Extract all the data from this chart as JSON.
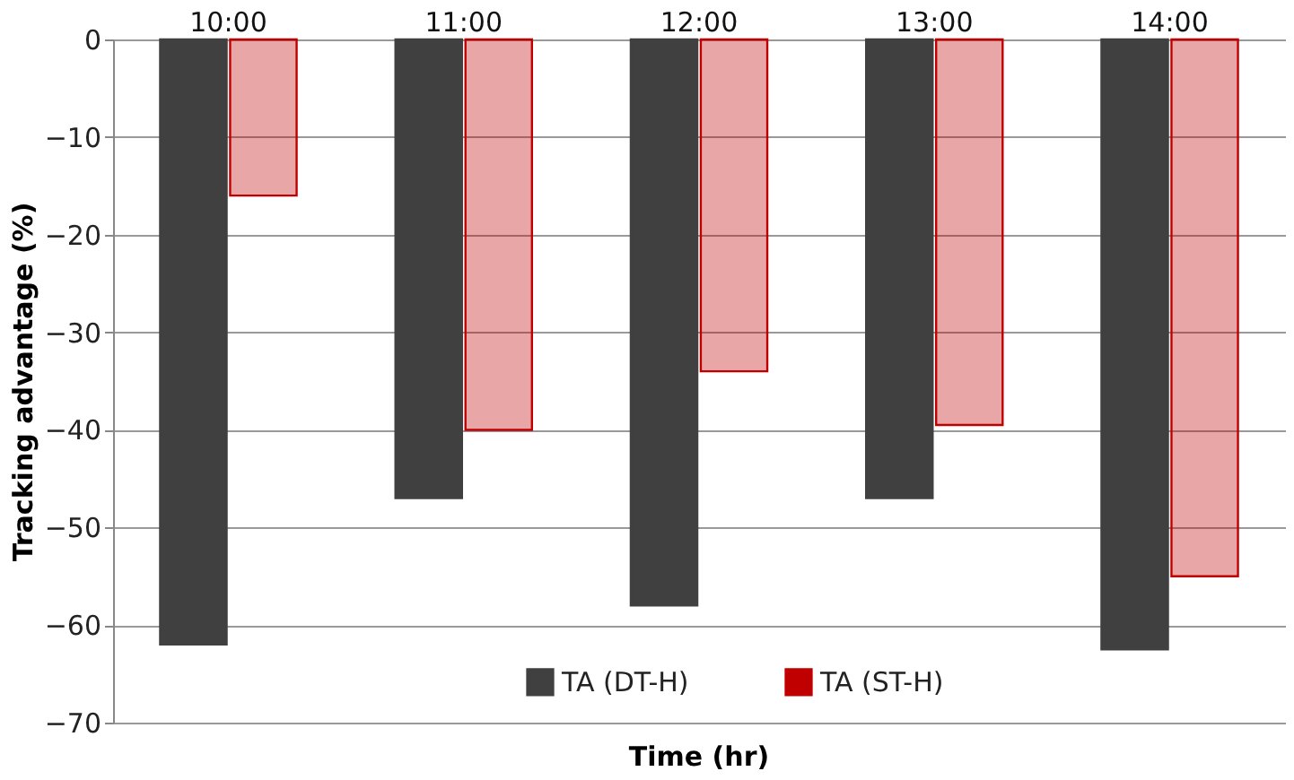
{
  "chart_data": {
    "type": "bar",
    "xlabel": "Time (hr)",
    "ylabel": "Tracking advantage (%)",
    "categories": [
      "10:00",
      "11:00",
      "12:00",
      "13:00",
      "14:00"
    ],
    "series": [
      {
        "name": "TA (DT-H)",
        "color": "#404040",
        "values": [
          -62,
          -47,
          -58,
          -47,
          -62.5
        ]
      },
      {
        "name": "TA (ST-H)",
        "color": "#c00000",
        "values": [
          -16,
          -40,
          -34,
          -39.5,
          -55
        ]
      }
    ],
    "ylim": [
      -70,
      0
    ],
    "yticks": [
      0,
      -10,
      -20,
      -30,
      -40,
      -50,
      -60,
      -70
    ],
    "grid": "y",
    "legend": "bottom"
  }
}
